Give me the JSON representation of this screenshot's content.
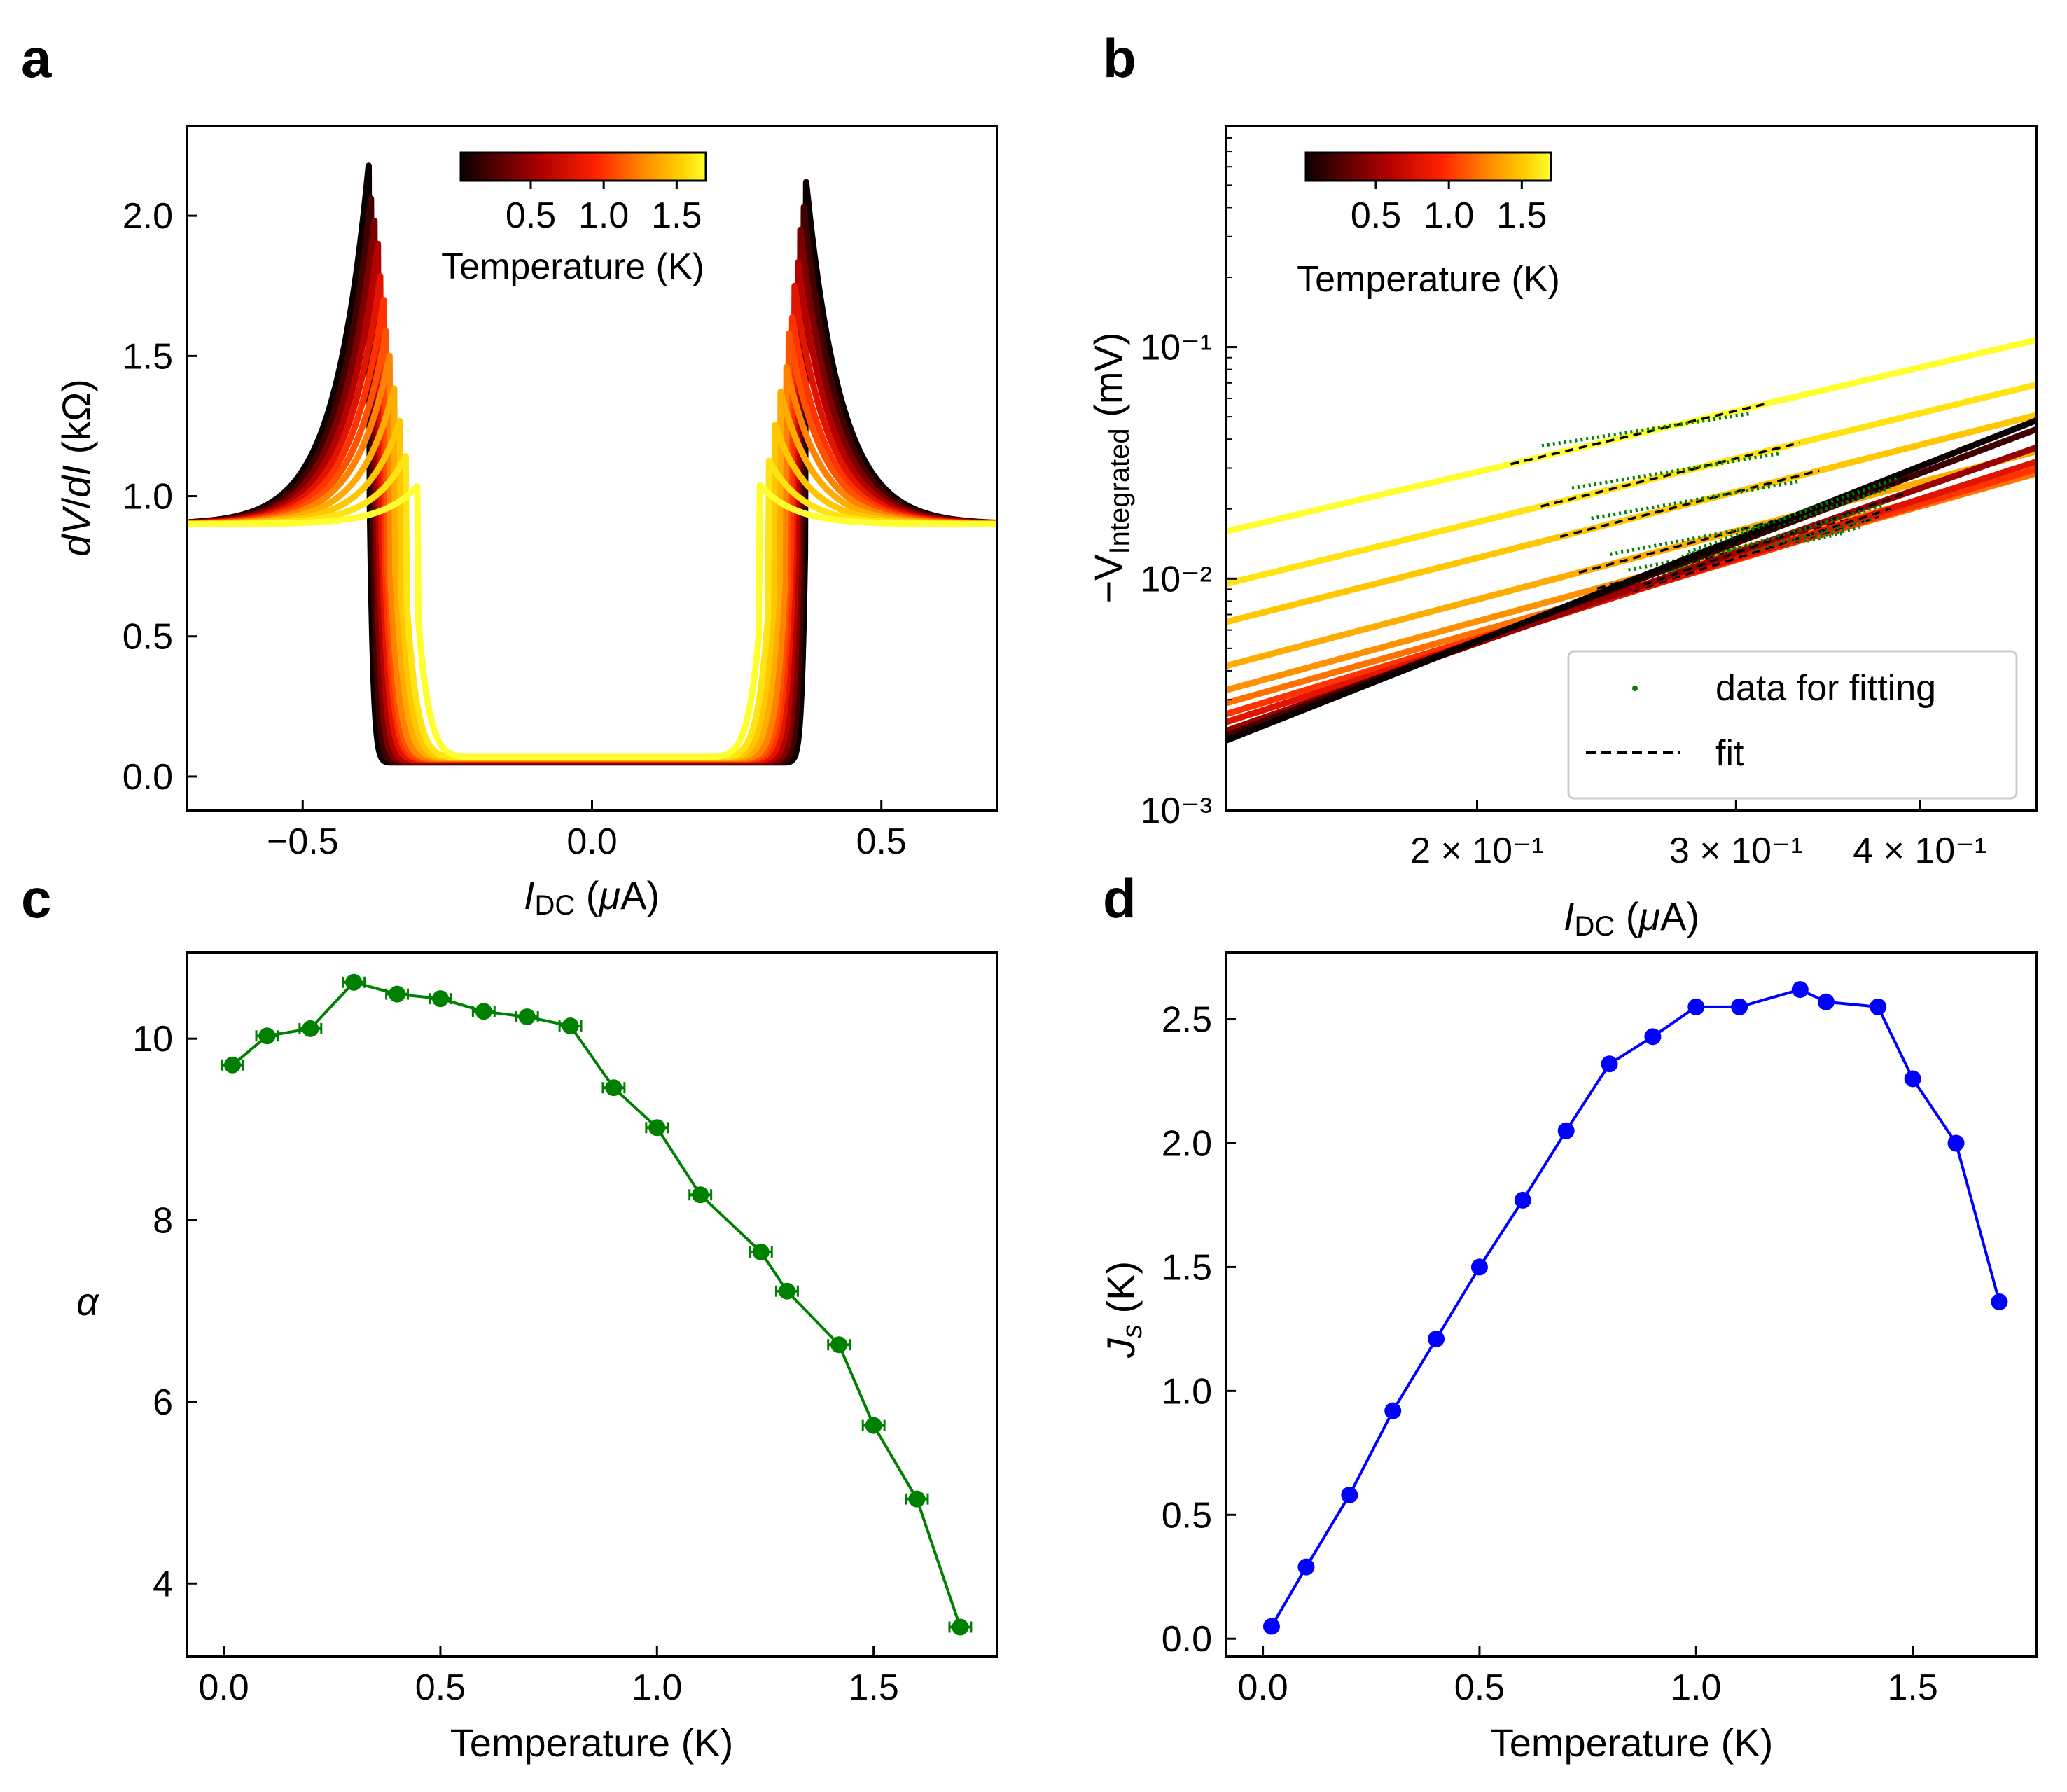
{
  "figure": {
    "background": "#ffffff"
  },
  "panels": {
    "a": {
      "label": "a",
      "colorbar": {
        "ticks": [
          "0.5",
          "1.0",
          "1.5"
        ],
        "label": "Temperature (K)"
      },
      "xlabel": {
        "italic": "I",
        "sub": "DC",
        "rest_pre": " (",
        "mu": "μ",
        "rest_post": "A)"
      },
      "ylabel": {
        "a": "dV",
        "b": "/",
        "c": "dI",
        "d": " (kΩ)"
      }
    },
    "b": {
      "label": "b",
      "colorbar": {
        "ticks": [
          "0.5",
          "1.0",
          "1.5"
        ],
        "label": "Temperature (K)"
      },
      "xlabel": {
        "italic": "I",
        "sub": "DC",
        "rest_pre": " (",
        "mu": "μ",
        "rest_post": "A)"
      },
      "ylabel": {
        "prefix": "−V",
        "sub": "Integrated",
        "suffix": " (mV)"
      },
      "legend": {
        "data": "data for fitting",
        "fit": "fit"
      }
    },
    "c": {
      "label": "c",
      "xlabel": "Temperature (K)",
      "ylabel": "α"
    },
    "d": {
      "label": "d",
      "xlabel": "Temperature (K)",
      "ylabel": {
        "main": "J",
        "sub": "s",
        "unit": " (K)"
      }
    }
  },
  "chart_data": [
    {
      "id": "a",
      "type": "line",
      "title": "",
      "xlabel": "I_DC (μA)",
      "ylabel": "dV/dI (kΩ)",
      "xlim": [
        -0.7,
        0.7
      ],
      "ylim": [
        -0.12,
        2.32
      ],
      "xticks": [
        -0.5,
        0.0,
        0.5
      ],
      "xtick_labels": [
        "−0.5",
        "0.0",
        "0.5"
      ],
      "yticks": [
        0.0,
        0.5,
        1.0,
        1.5,
        2.0
      ],
      "ytick_labels": [
        "0.0",
        "0.5",
        "1.0",
        "1.5",
        "2.0"
      ],
      "colormap": "hot (temperature)",
      "series": [
        {
          "T": 0.02,
          "Ic_left": 0.385,
          "Ic_right": 0.37,
          "peak_left": 2.2,
          "peak_right": 2.12
        },
        {
          "T": 0.2,
          "Ic_left": 0.38,
          "Ic_right": 0.365,
          "peak_left": 2.1,
          "peak_right": 2.05
        },
        {
          "T": 0.4,
          "Ic_left": 0.375,
          "Ic_right": 0.36,
          "peak_left": 2.0,
          "peak_right": 1.95
        },
        {
          "T": 0.6,
          "Ic_left": 0.37,
          "Ic_right": 0.355,
          "peak_left": 1.9,
          "peak_right": 1.85
        },
        {
          "T": 0.8,
          "Ic_left": 0.365,
          "Ic_right": 0.35,
          "peak_left": 1.8,
          "peak_right": 1.75
        },
        {
          "T": 1.0,
          "Ic_left": 0.36,
          "Ic_right": 0.345,
          "peak_left": 1.7,
          "peak_right": 1.65
        },
        {
          "T": 1.1,
          "Ic_left": 0.355,
          "Ic_right": 0.34,
          "peak_left": 1.6,
          "peak_right": 1.58
        },
        {
          "T": 1.25,
          "Ic_left": 0.35,
          "Ic_right": 0.335,
          "peak_left": 1.5,
          "peak_right": 1.47
        },
        {
          "T": 1.4,
          "Ic_left": 0.34,
          "Ic_right": 0.325,
          "peak_left": 1.4,
          "peak_right": 1.38
        },
        {
          "T": 1.5,
          "Ic_left": 0.33,
          "Ic_right": 0.315,
          "peak_left": 1.28,
          "peak_right": 1.26
        },
        {
          "T": 1.6,
          "Ic_left": 0.32,
          "Ic_right": 0.305,
          "peak_left": 1.15,
          "peak_right": 1.13
        },
        {
          "T": 1.7,
          "Ic_left": 0.3,
          "Ic_right": 0.29,
          "peak_left": 1.04,
          "peak_right": 1.04
        }
      ],
      "colorbar_range": [
        0.02,
        1.7
      ],
      "colorbar_ticks": [
        0.5,
        1.0,
        1.5
      ]
    },
    {
      "id": "b",
      "type": "line",
      "scale": "log-log",
      "xlabel": "I_DC (μA)",
      "ylabel": "−V_Integrated (mV)",
      "xlim": [
        0.135,
        0.48
      ],
      "ylim": [
        0.001,
        0.9
      ],
      "xticks": [
        0.2,
        0.3,
        0.4
      ],
      "xtick_labels": [
        "2 × 10⁻¹",
        "3 × 10⁻¹",
        "4 × 10⁻¹"
      ],
      "yticks": [
        0.001,
        0.01,
        0.1
      ],
      "ytick_labels": [
        "10⁻³",
        "10⁻²",
        "10⁻¹"
      ],
      "legend_position": "bottom-right",
      "legend": [
        "data for fitting",
        "fit"
      ],
      "curves": [
        {
          "T": 1.7,
          "start": 0.016,
          "Ic": 0.31
        },
        {
          "T": 1.6,
          "start": 0.0095,
          "Ic": 0.325
        },
        {
          "T": 1.5,
          "start": 0.0065,
          "Ic": 0.335
        },
        {
          "T": 1.4,
          "start": 0.0042,
          "Ic": 0.345
        },
        {
          "T": 1.3,
          "start": 0.0033,
          "Ic": 0.355
        },
        {
          "T": 1.2,
          "start": 0.0029,
          "Ic": 0.36
        },
        {
          "T": 1.0,
          "start": 0.0026,
          "Ic": 0.368
        },
        {
          "T": 0.8,
          "start": 0.0024,
          "Ic": 0.375
        },
        {
          "T": 0.5,
          "start": 0.0022,
          "Ic": 0.382
        },
        {
          "T": 0.2,
          "start": 0.0021,
          "Ic": 0.386
        },
        {
          "T": 0.02,
          "start": 0.002,
          "Ic": 0.39
        }
      ],
      "colorbar_range": [
        0.02,
        1.7
      ],
      "colorbar_ticks": [
        0.5,
        1.0,
        1.5
      ]
    },
    {
      "id": "c",
      "type": "line",
      "color": "#008000",
      "markers": true,
      "error_bars": true,
      "xlabel": "Temperature (K)",
      "ylabel": "α",
      "xlim": [
        -0.085,
        1.785
      ],
      "ylim": [
        3.2,
        10.95
      ],
      "xticks": [
        0.0,
        0.5,
        1.0,
        1.5
      ],
      "xtick_labels": [
        "0.0",
        "0.5",
        "1.0",
        "1.5"
      ],
      "yticks": [
        4,
        6,
        8,
        10
      ],
      "ytick_labels": [
        "4",
        "6",
        "8",
        "10"
      ],
      "x": [
        0.02,
        0.1,
        0.2,
        0.3,
        0.4,
        0.5,
        0.6,
        0.7,
        0.8,
        0.9,
        1.0,
        1.1,
        1.24,
        1.3,
        1.42,
        1.5,
        1.6,
        1.7
      ],
      "y": [
        9.71,
        10.03,
        10.11,
        10.62,
        10.49,
        10.44,
        10.3,
        10.24,
        10.14,
        9.46,
        9.02,
        8.28,
        7.65,
        7.22,
        6.63,
        5.74,
        4.93,
        3.52
      ],
      "xerr": 0.025
    },
    {
      "id": "d",
      "type": "line",
      "color": "#0000ff",
      "markers": true,
      "xlabel": "Temperature (K)",
      "ylabel": "J_s (K)",
      "xlim": [
        -0.085,
        1.785
      ],
      "ylim": [
        -0.07,
        2.77
      ],
      "xticks": [
        0.0,
        0.5,
        1.0,
        1.5
      ],
      "xtick_labels": [
        "0.0",
        "0.5",
        "1.0",
        "1.5"
      ],
      "yticks": [
        0.0,
        0.5,
        1.0,
        1.5,
        2.0,
        2.5
      ],
      "ytick_labels": [
        "0.0",
        "0.5",
        "1.0",
        "1.5",
        "2.0",
        "2.5"
      ],
      "x": [
        0.02,
        0.1,
        0.2,
        0.3,
        0.4,
        0.5,
        0.6,
        0.7,
        0.8,
        0.9,
        1.0,
        1.1,
        1.24,
        1.3,
        1.42,
        1.5,
        1.6,
        1.7
      ],
      "y": [
        0.05,
        0.29,
        0.58,
        0.92,
        1.21,
        1.5,
        1.77,
        2.05,
        2.32,
        2.43,
        2.55,
        2.55,
        2.62,
        2.57,
        2.55,
        2.26,
        2.0,
        1.36
      ]
    }
  ]
}
